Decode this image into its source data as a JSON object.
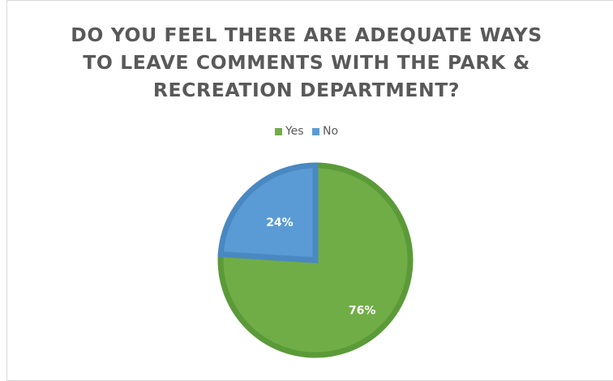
{
  "chart_data": {
    "type": "pie",
    "title": "DO YOU FEEL THERE ARE ADEQUATE WAYS TO LEAVE COMMENTS WITH THE PARK & RECREATION DEPARTMENT?",
    "title_lines": [
      "DO YOU FEEL THERE ARE ADEQUATE WAYS",
      "TO LEAVE COMMENTS WITH THE PARK &",
      "RECREATION DEPARTMENT?"
    ],
    "categories": [
      "Yes",
      "No"
    ],
    "values": [
      76,
      24
    ],
    "data_labels": [
      "76%",
      "24%"
    ],
    "colors": [
      "#70ad47",
      "#5b9bd5"
    ],
    "border_colors": [
      "#5b9a38",
      "#4a88c2"
    ],
    "legend": {
      "placement": "top",
      "entries": [
        "Yes",
        "No"
      ]
    },
    "title_color": "#595959"
  }
}
